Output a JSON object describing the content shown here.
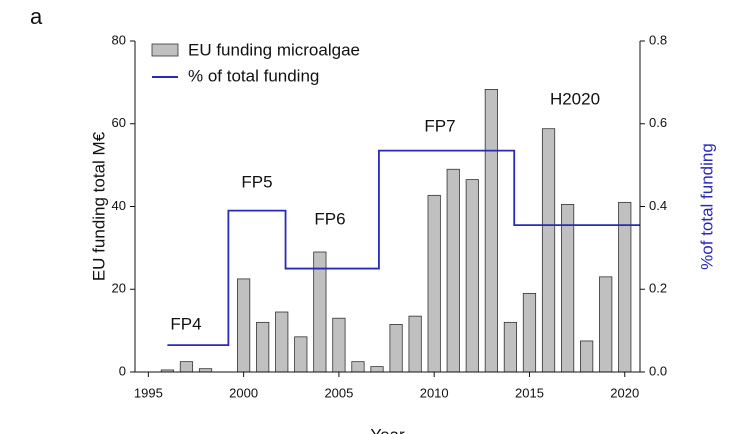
{
  "panel_label": "a",
  "chart_data": {
    "type": "bar",
    "xlabel": "Year",
    "ylabel": "EU funding total M€",
    "y2label": "%of total funding",
    "x": [
      1996,
      1997,
      1998,
      2000,
      2001,
      2002,
      2003,
      2004,
      2005,
      2006,
      2007,
      2008,
      2009,
      2010,
      2011,
      2012,
      2013,
      2014,
      2015,
      2016,
      2017,
      2018,
      2019,
      2020
    ],
    "series": [
      {
        "name": "EU funding microalgae",
        "color": "#c0c0c0",
        "values": [
          0.5,
          2.5,
          0.8,
          22.5,
          12,
          14.5,
          8.5,
          29,
          13,
          2.5,
          1.3,
          11.5,
          13.5,
          42.7,
          49,
          46.5,
          68.3,
          12,
          19,
          58.8,
          40.5,
          7.5,
          23,
          41
        ]
      },
      {
        "name": "% of total funding",
        "color": "#2a2ab8",
        "type": "line",
        "step": "post",
        "axis": "y2",
        "x": [
          1996,
          1999.2,
          2002.2,
          2007.1,
          2014.2,
          2020.8
        ],
        "values": [
          0.065,
          0.39,
          0.25,
          0.535,
          0.355,
          0.355
        ]
      }
    ],
    "annotations": [
      "FP4",
      "FP5",
      "FP6",
      "FP7",
      "H2020"
    ],
    "xlim": [
      1994.3,
      2020.8
    ],
    "xticks": [
      1995,
      2000,
      2005,
      2010,
      2015,
      2020
    ],
    "ylim": [
      0,
      80
    ],
    "yticks": [
      0,
      20,
      40,
      60,
      80
    ],
    "y2lim": [
      0,
      0.8
    ],
    "y2ticks": [
      {
        "value": 0,
        "label": "0.0"
      },
      0.2,
      0.4,
      0.6,
      0.8
    ],
    "legend": "upper left"
  }
}
